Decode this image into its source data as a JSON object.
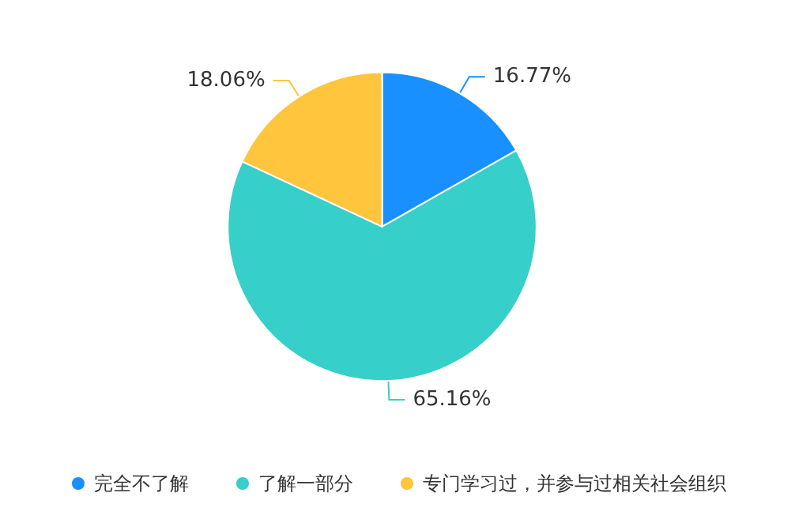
{
  "chart_data": {
    "type": "pie",
    "categories": [
      "完全不了解",
      "了解一部分",
      "专门学习过，并参与过相关社会组织"
    ],
    "values": [
      16.77,
      65.16,
      18.06
    ],
    "value_labels": [
      "16.77%",
      "65.16%",
      "18.06%"
    ],
    "colors": [
      "#1890ff",
      "#36cfc9",
      "#ffc53d"
    ],
    "legend": "bottom"
  }
}
